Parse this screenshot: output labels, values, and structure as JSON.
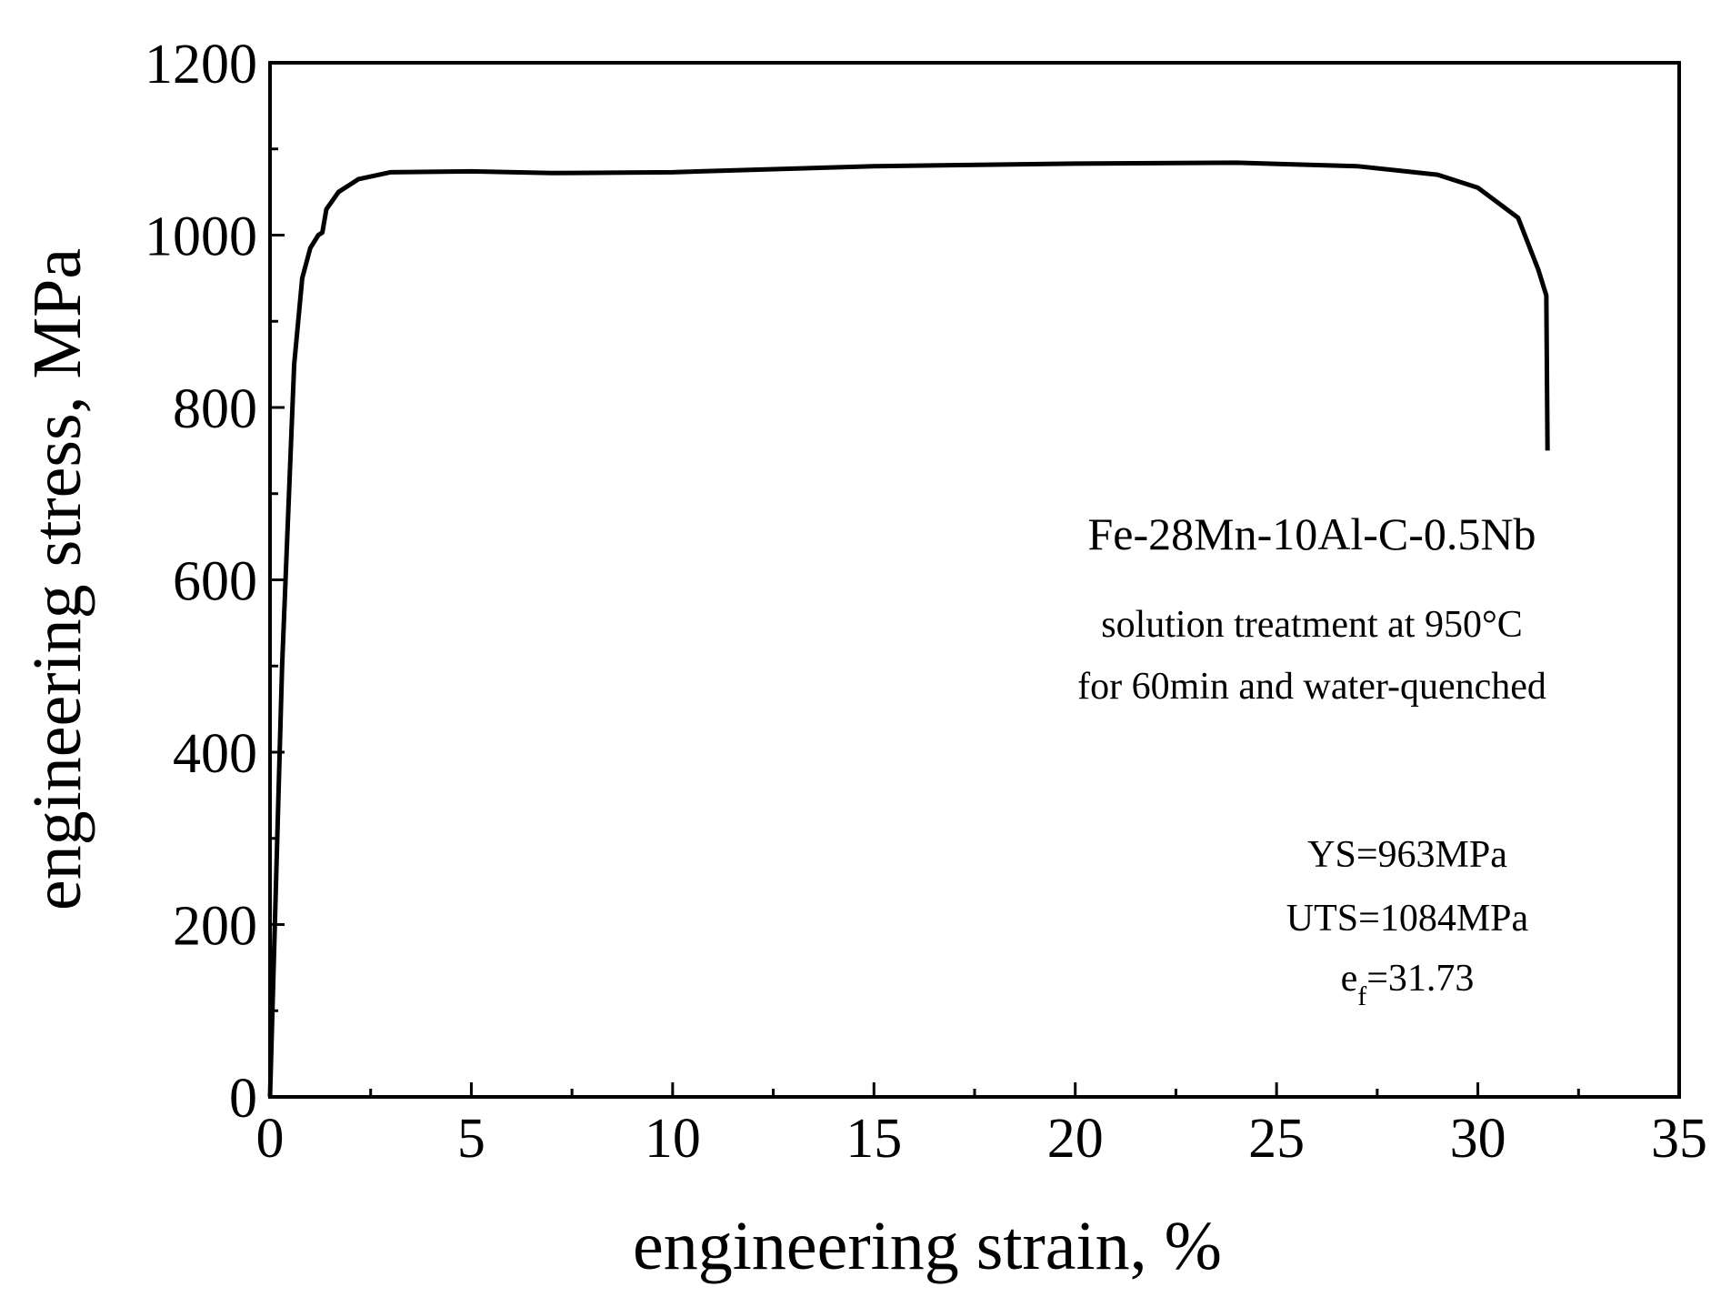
{
  "chart_data": {
    "type": "line",
    "xlabel": "engineering strain, %",
    "ylabel": "engineering stress, MPa",
    "x": [
      0,
      0.3,
      0.6,
      0.8,
      1.0,
      1.2,
      1.3,
      1.4,
      1.7,
      2.2,
      3,
      5,
      7,
      10,
      15,
      20,
      24,
      27,
      29,
      30,
      31,
      31.5,
      31.7,
      31.73
    ],
    "values": [
      0,
      500,
      850,
      950,
      985,
      1000,
      1003,
      1030,
      1050,
      1065,
      1073,
      1074,
      1072,
      1073,
      1080,
      1083,
      1084,
      1080,
      1070,
      1055,
      1020,
      960,
      930,
      750
    ],
    "color": "#000000",
    "xlim": [
      0,
      35
    ],
    "xticks": [
      0,
      5,
      10,
      15,
      20,
      25,
      30,
      35
    ],
    "xticks_minor": [
      2.5,
      7.5,
      12.5,
      17.5,
      22.5,
      27.5,
      32.5
    ],
    "ylim": [
      0,
      1200
    ],
    "yticks": [
      0,
      200,
      400,
      600,
      800,
      1000,
      1200
    ],
    "yticks_minor": [
      100,
      300,
      500,
      700,
      900,
      1100
    ],
    "grid": false,
    "annotations": [
      "Fe-28Mn-10Al-C-0.5Nb",
      "solution treatment at 950°C",
      "for 60min and water-quenched",
      "YS=963MPa",
      "UTS=1084MPa",
      {
        "text": "e",
        "subscript": "f",
        "suffix": "=31.73"
      }
    ]
  }
}
